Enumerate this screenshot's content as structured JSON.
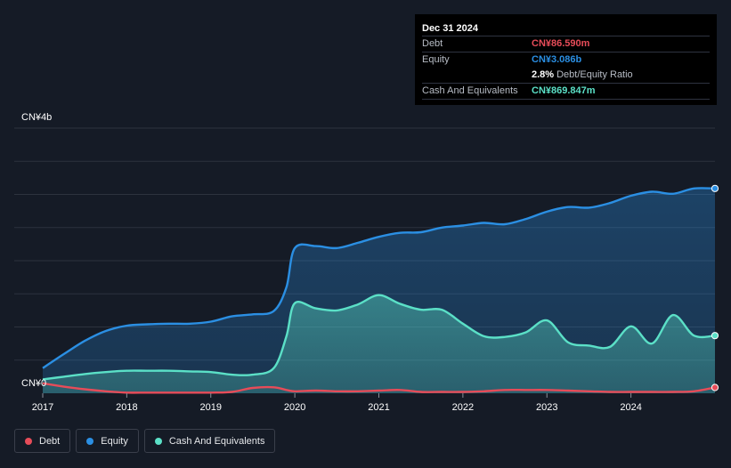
{
  "tooltip": {
    "date": "Dec 31 2024",
    "debt_label": "Debt",
    "debt_value": "CN¥86.590m",
    "equity_label": "Equity",
    "equity_value": "CN¥3.086b",
    "ratio_value": "2.8%",
    "ratio_label": "Debt/Equity Ratio",
    "cash_label": "Cash And Equivalents",
    "cash_value": "CN¥869.847m"
  },
  "legend": {
    "debt": "Debt",
    "equity": "Equity",
    "cash": "Cash And Equivalents"
  },
  "colors": {
    "background": "#151b26",
    "debt": "#e64c59",
    "equity": "#2b8fe3",
    "cash": "#5be0c7",
    "grid": "#2d333e"
  },
  "chart_data": {
    "type": "area",
    "title": "",
    "x_unit": "year",
    "xlim": [
      2017.0,
      2025.0
    ],
    "ylim": [
      0,
      4.0
    ],
    "y_unit": "CN¥b",
    "y_tick_labels": [
      {
        "value": 4.0,
        "label": "CN¥4b"
      },
      {
        "value": 0,
        "label": "CN¥0"
      }
    ],
    "gridlines": [
      0.5,
      1.0,
      1.5,
      2.0,
      2.5,
      3.0,
      3.5
    ],
    "x_tick_labels": [
      {
        "value": 2017,
        "label": "2017"
      },
      {
        "value": 2018,
        "label": "2018"
      },
      {
        "value": 2019,
        "label": "2019"
      },
      {
        "value": 2020,
        "label": "2020"
      },
      {
        "value": 2021,
        "label": "2021"
      },
      {
        "value": 2022,
        "label": "2022"
      },
      {
        "value": 2023,
        "label": "2023"
      },
      {
        "value": 2024,
        "label": "2024"
      }
    ],
    "series": [
      {
        "name": "Equity",
        "key": "equity",
        "points": [
          [
            2017.0,
            0.38
          ],
          [
            2017.25,
            0.59
          ],
          [
            2017.5,
            0.79
          ],
          [
            2017.75,
            0.94
          ],
          [
            2018.0,
            1.02
          ],
          [
            2018.25,
            1.04
          ],
          [
            2018.5,
            1.05
          ],
          [
            2018.75,
            1.05
          ],
          [
            2019.0,
            1.08
          ],
          [
            2019.25,
            1.16
          ],
          [
            2019.5,
            1.19
          ],
          [
            2019.75,
            1.24
          ],
          [
            2019.9,
            1.6
          ],
          [
            2020.0,
            2.19
          ],
          [
            2020.25,
            2.22
          ],
          [
            2020.5,
            2.19
          ],
          [
            2020.75,
            2.27
          ],
          [
            2021.0,
            2.36
          ],
          [
            2021.25,
            2.42
          ],
          [
            2021.5,
            2.43
          ],
          [
            2021.75,
            2.5
          ],
          [
            2022.0,
            2.53
          ],
          [
            2022.25,
            2.57
          ],
          [
            2022.5,
            2.55
          ],
          [
            2022.75,
            2.63
          ],
          [
            2023.0,
            2.74
          ],
          [
            2023.25,
            2.81
          ],
          [
            2023.5,
            2.8
          ],
          [
            2023.75,
            2.87
          ],
          [
            2024.0,
            2.98
          ],
          [
            2024.25,
            3.04
          ],
          [
            2024.5,
            3.01
          ],
          [
            2024.75,
            3.09
          ],
          [
            2025.0,
            3.09
          ]
        ]
      },
      {
        "name": "Cash And Equivalents",
        "key": "cash",
        "points": [
          [
            2017.0,
            0.21
          ],
          [
            2017.25,
            0.25
          ],
          [
            2017.5,
            0.29
          ],
          [
            2017.75,
            0.32
          ],
          [
            2018.0,
            0.34
          ],
          [
            2018.25,
            0.34
          ],
          [
            2018.5,
            0.34
          ],
          [
            2018.75,
            0.33
          ],
          [
            2019.0,
            0.32
          ],
          [
            2019.25,
            0.28
          ],
          [
            2019.5,
            0.28
          ],
          [
            2019.75,
            0.38
          ],
          [
            2019.9,
            0.86
          ],
          [
            2020.0,
            1.36
          ],
          [
            2020.25,
            1.28
          ],
          [
            2020.5,
            1.25
          ],
          [
            2020.75,
            1.34
          ],
          [
            2021.0,
            1.48
          ],
          [
            2021.25,
            1.35
          ],
          [
            2021.5,
            1.26
          ],
          [
            2021.75,
            1.26
          ],
          [
            2022.0,
            1.05
          ],
          [
            2022.25,
            0.86
          ],
          [
            2022.5,
            0.85
          ],
          [
            2022.75,
            0.92
          ],
          [
            2023.0,
            1.1
          ],
          [
            2023.25,
            0.77
          ],
          [
            2023.5,
            0.72
          ],
          [
            2023.75,
            0.7
          ],
          [
            2024.0,
            1.01
          ],
          [
            2024.25,
            0.75
          ],
          [
            2024.5,
            1.18
          ],
          [
            2024.75,
            0.87
          ],
          [
            2025.0,
            0.87
          ]
        ]
      },
      {
        "name": "Debt",
        "key": "debt",
        "points": [
          [
            2017.0,
            0.15
          ],
          [
            2017.25,
            0.1
          ],
          [
            2017.5,
            0.06
          ],
          [
            2017.75,
            0.03
          ],
          [
            2018.0,
            0.01
          ],
          [
            2018.25,
            0.01
          ],
          [
            2018.5,
            0.01
          ],
          [
            2018.75,
            0.01
          ],
          [
            2019.0,
            0.01
          ],
          [
            2019.25,
            0.02
          ],
          [
            2019.5,
            0.08
          ],
          [
            2019.75,
            0.09
          ],
          [
            2019.9,
            0.05
          ],
          [
            2020.0,
            0.03
          ],
          [
            2020.25,
            0.04
          ],
          [
            2020.5,
            0.03
          ],
          [
            2020.75,
            0.03
          ],
          [
            2021.0,
            0.04
          ],
          [
            2021.25,
            0.05
          ],
          [
            2021.5,
            0.02
          ],
          [
            2021.75,
            0.02
          ],
          [
            2022.0,
            0.02
          ],
          [
            2022.25,
            0.03
          ],
          [
            2022.5,
            0.05
          ],
          [
            2022.75,
            0.05
          ],
          [
            2023.0,
            0.05
          ],
          [
            2023.25,
            0.04
          ],
          [
            2023.5,
            0.03
          ],
          [
            2023.75,
            0.02
          ],
          [
            2024.0,
            0.02
          ],
          [
            2024.25,
            0.02
          ],
          [
            2024.5,
            0.02
          ],
          [
            2024.75,
            0.03
          ],
          [
            2025.0,
            0.087
          ]
        ]
      }
    ]
  }
}
